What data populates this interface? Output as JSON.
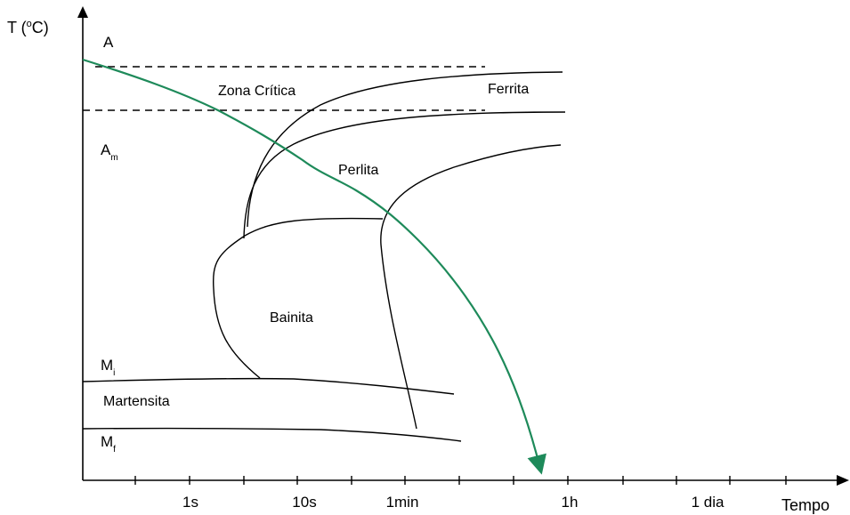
{
  "axes": {
    "y_label": "T (",
    "y_label_degree": "o",
    "y_label_unit": "C)",
    "x_label": "Tempo",
    "x_ticks": [
      "1s",
      "10s",
      "1min",
      "1h",
      "1 dia"
    ]
  },
  "regions": {
    "austenite": "A",
    "critical_zone": "Zona Crítica",
    "ferrite": "Ferrita",
    "austenite_m": "A",
    "austenite_m_sub": "m",
    "pearlite": "Perlita",
    "bainite": "Bainita",
    "martensite_start": "M",
    "martensite_start_sub": "i",
    "martensite": "Martensita",
    "martensite_finish": "M",
    "martensite_finish_sub": "f"
  },
  "colors": {
    "axis": "#000000",
    "curve": "#000000",
    "cooling_curve": "#1e8a5a"
  }
}
